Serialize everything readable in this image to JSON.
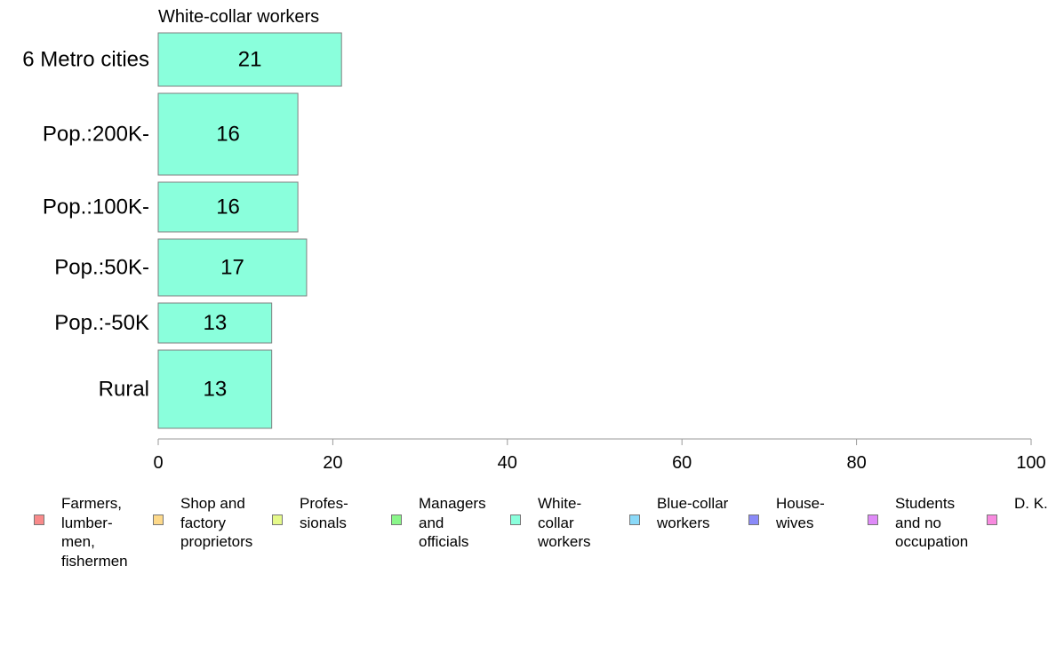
{
  "chart_data": {
    "type": "bar",
    "orientation": "horizontal",
    "title": "White-collar workers",
    "categories": [
      "6 Metro cities",
      "Pop.:200K-",
      "Pop.:100K-",
      "Pop.:50K-",
      "Pop.:-50K",
      "Rural"
    ],
    "values": [
      21,
      16,
      16,
      17,
      13,
      13
    ],
    "bar_value_labels": [
      "21",
      "16",
      "16",
      "17",
      "13",
      "13"
    ],
    "series": [
      {
        "name": "White-collar workers",
        "values": [
          21,
          16,
          16,
          17,
          13,
          13
        ],
        "color": "#8affdc"
      }
    ],
    "xlim": [
      0,
      100
    ],
    "xticks": [
      0,
      20,
      40,
      60,
      80,
      100
    ],
    "grid": false,
    "legend_position": "bottom",
    "bar_color": "#8affdc",
    "bar_edge_color": "#7f7f7f"
  },
  "legend": [
    {
      "label": "Farmers,\nlumber-\nmen,\nfishermen",
      "color": "#f88a8a"
    },
    {
      "label": "Shop and\nfactory\nproprietors",
      "color": "#fdd98a"
    },
    {
      "label": "Profes-\nsionals",
      "color": "#e5f98a"
    },
    {
      "label": "Managers\nand\nofficials",
      "color": "#8af68a"
    },
    {
      "label": "White-\ncollar\nworkers",
      "color": "#8affdc"
    },
    {
      "label": "Blue-collar\nworkers",
      "color": "#8ad9f8"
    },
    {
      "label": "House-\nwives",
      "color": "#8a8af8"
    },
    {
      "label": "Students\nand no\noccupation",
      "color": "#df8af8"
    },
    {
      "label": "D. K.",
      "color": "#f88adf"
    }
  ]
}
